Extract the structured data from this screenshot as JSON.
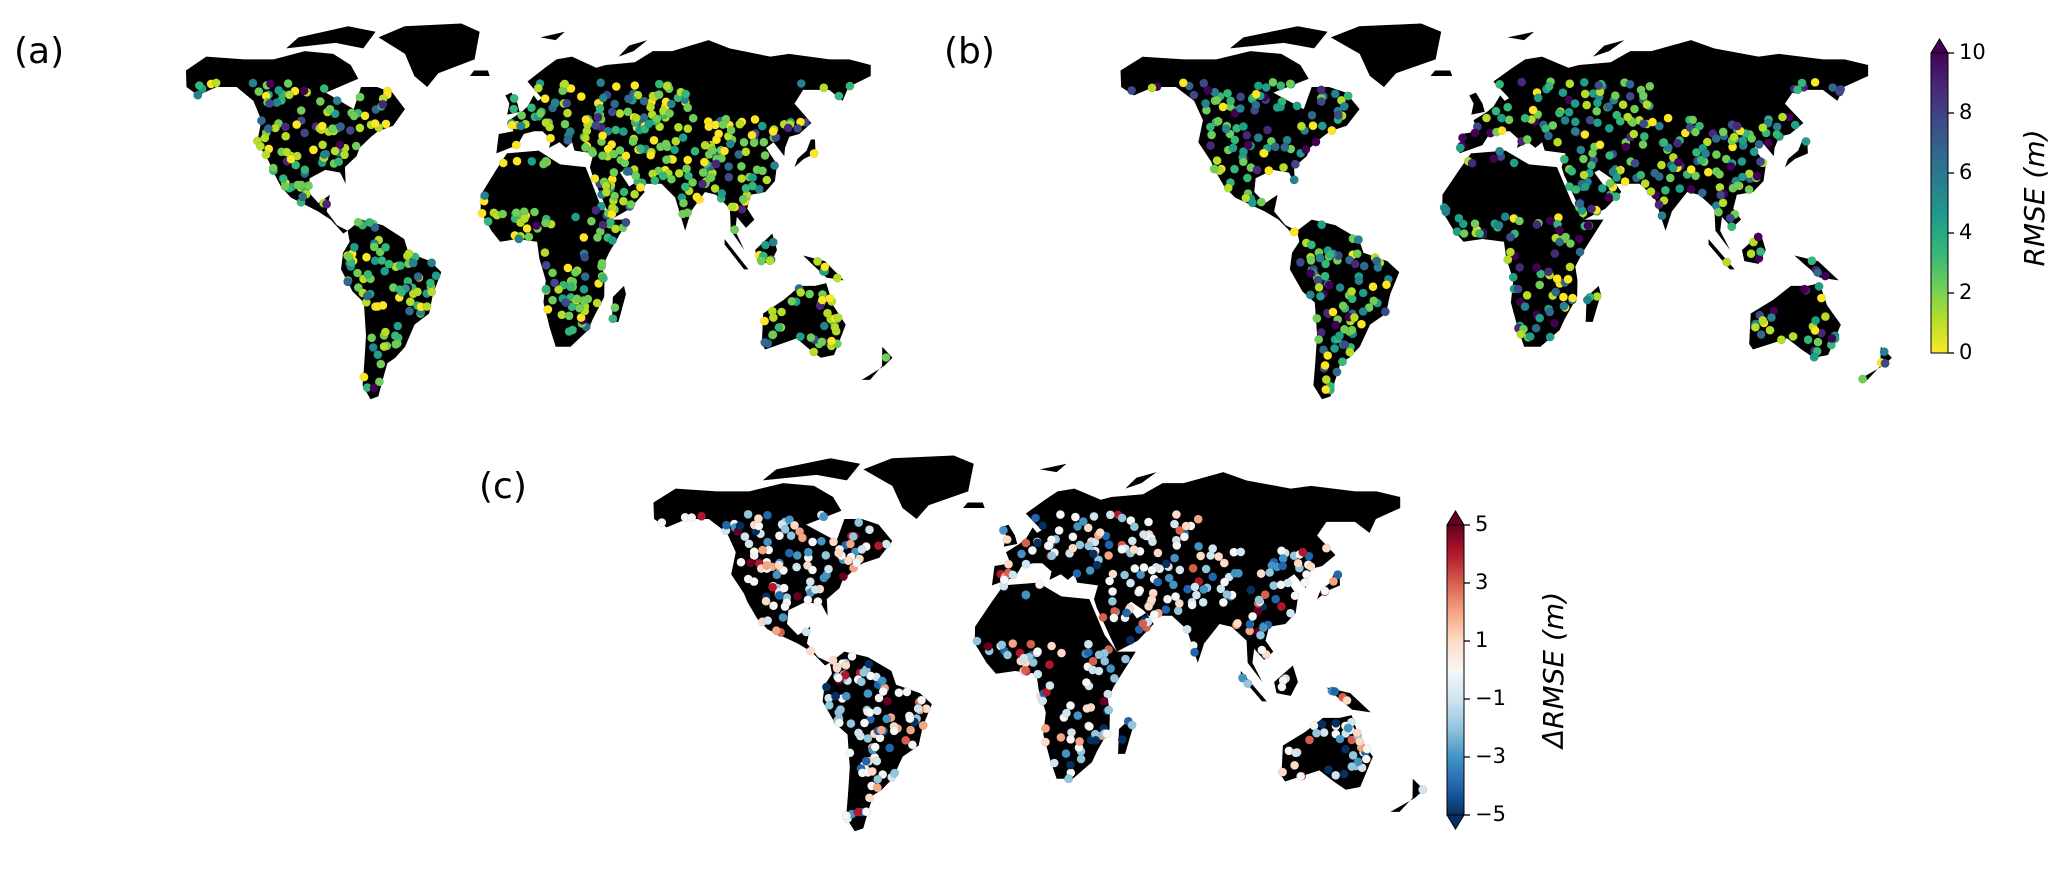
{
  "panels": [
    {
      "label": "(a)"
    },
    {
      "label": "(b)"
    },
    {
      "label": "(c)"
    }
  ],
  "colorbars": [
    {
      "label": "RMSE (m)",
      "lim": [
        0,
        10
      ],
      "ticks": [
        0,
        2,
        4,
        6,
        8,
        10
      ],
      "extend": "max",
      "colormap": "viridis_r"
    },
    {
      "label": "ΔRMSE (m)",
      "lim": [
        -5,
        5
      ],
      "ticks": [
        {
          "value": -5,
          "label": "−5"
        },
        {
          "value": -3,
          "label": "−3"
        },
        {
          "value": -1,
          "label": "−1"
        },
        1,
        3,
        5
      ],
      "extend": "both",
      "colormap": "RdBu_r"
    }
  ]
}
